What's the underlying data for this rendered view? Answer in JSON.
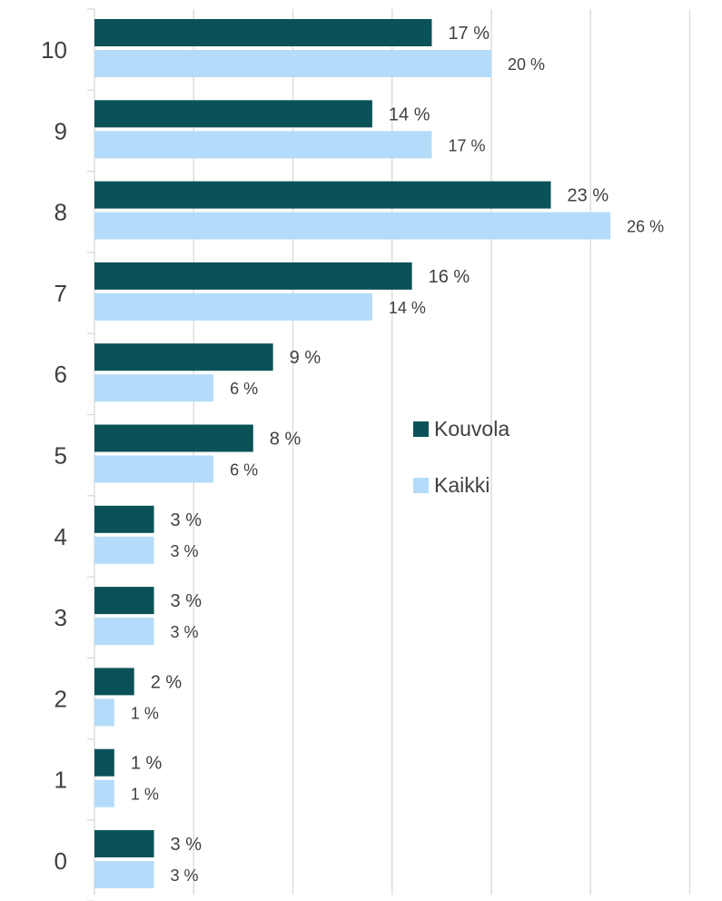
{
  "chart_data": {
    "type": "bar",
    "orientation": "horizontal",
    "categories": [
      "10",
      "9",
      "8",
      "7",
      "6",
      "5",
      "4",
      "3",
      "2",
      "1",
      "0"
    ],
    "series": [
      {
        "name": "Kouvola",
        "color": "#0a5258",
        "values": [
          17,
          14,
          23,
          16,
          9,
          8,
          3,
          3,
          2,
          1,
          3
        ],
        "labels": [
          "17 %",
          "14 %",
          "23 %",
          "16 %",
          "9 %",
          "8 %",
          "3 %",
          "3 %",
          "2 %",
          "1 %",
          "3 %"
        ]
      },
      {
        "name": "Kaikki",
        "color": "#b4dcfa",
        "values": [
          20,
          17,
          26,
          14,
          6,
          6,
          3,
          3,
          1,
          1,
          3
        ],
        "labels": [
          "20 %",
          "17 %",
          "26 %",
          "14 %",
          "6 %",
          "6 %",
          "3 %",
          "3 %",
          "1 %",
          "1 %",
          "3 %"
        ]
      }
    ],
    "xlim": [
      0,
      30
    ],
    "grid": true,
    "legend_position": "center-right",
    "title": "",
    "xlabel": "",
    "ylabel": ""
  }
}
